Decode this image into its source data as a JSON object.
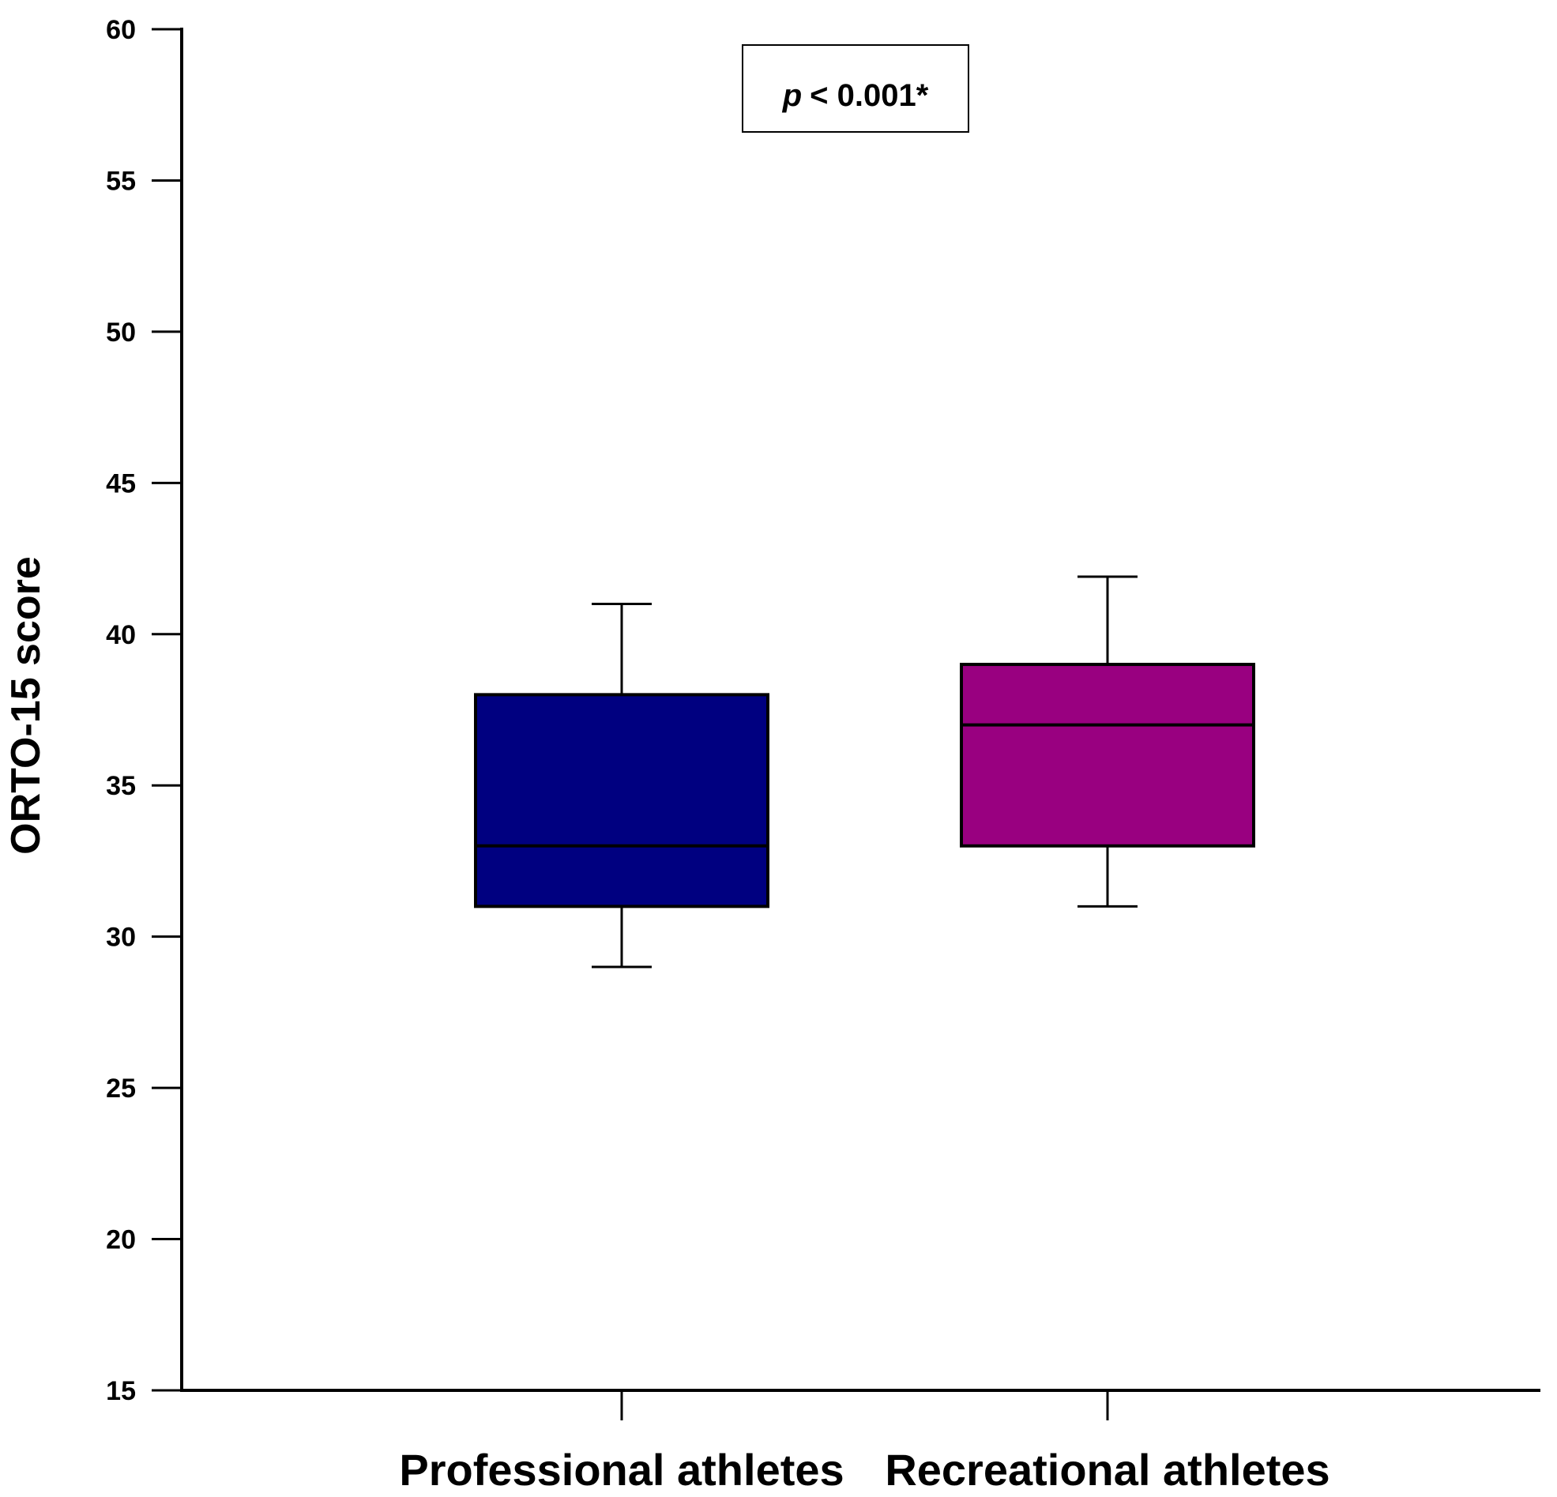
{
  "chart_data": {
    "type": "boxplot",
    "title": "",
    "xlabel": "",
    "ylabel": "ORTO-15 score",
    "ylim": [
      15,
      60
    ],
    "yticks": [
      15,
      20,
      25,
      30,
      35,
      40,
      45,
      50,
      55,
      60
    ],
    "categories": [
      "Professional athletes",
      "Recreational athletes"
    ],
    "boxes": [
      {
        "name": "Professional athletes",
        "whisker_low": 29,
        "q1": 31,
        "median": 33,
        "q3": 38,
        "whisker_high": 41,
        "color": "#000080"
      },
      {
        "name": "Recreational athletes",
        "whisker_low": 31,
        "q1": 33,
        "median": 37,
        "q3": 39,
        "whisker_high": 41.9,
        "color": "#990080"
      }
    ],
    "annotation": {
      "p_symbol": "p",
      "text": "< 0.001*"
    },
    "grid": false,
    "legend": "none"
  },
  "colors": {
    "axis": "#000000",
    "background": "#ffffff"
  }
}
